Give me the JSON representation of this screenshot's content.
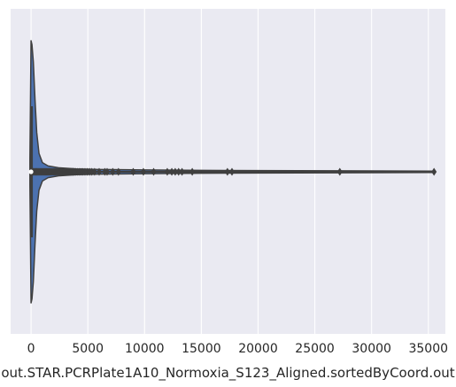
{
  "chart_data": {
    "type": "violin",
    "orientation": "horizontal",
    "title": "",
    "xlabel": "out.STAR.PCRPlate1A10_Normoxia_S123_Aligned.sortedByCoord.out",
    "ylabel": "",
    "xlim": [
      -1800,
      36500
    ],
    "xticks": [
      0,
      5000,
      10000,
      15000,
      20000,
      25000,
      30000,
      35000
    ],
    "xtick_labels": [
      "0",
      "5000",
      "10000",
      "15000",
      "20000",
      "25000",
      "30000",
      "35000"
    ],
    "grid": true,
    "background": "#eaeaf2",
    "fill_color": "#4c72b0",
    "line_color": "#3f3f3f",
    "summary": {
      "median": 0,
      "q1": 0,
      "q3": 30,
      "whisker_low": 0,
      "whisker_high": 80,
      "max": 35500
    },
    "density_profile": [
      {
        "x": -100,
        "half_width": 0.1
      },
      {
        "x": 0,
        "half_width": 1.0
      },
      {
        "x": 80,
        "half_width": 0.97
      },
      {
        "x": 200,
        "half_width": 0.84
      },
      {
        "x": 350,
        "half_width": 0.55
      },
      {
        "x": 500,
        "half_width": 0.3
      },
      {
        "x": 700,
        "half_width": 0.14
      },
      {
        "x": 1000,
        "half_width": 0.07
      },
      {
        "x": 1500,
        "half_width": 0.045
      },
      {
        "x": 2500,
        "half_width": 0.03
      },
      {
        "x": 4000,
        "half_width": 0.022
      },
      {
        "x": 6000,
        "half_width": 0.018
      },
      {
        "x": 10000,
        "half_width": 0.014
      },
      {
        "x": 15000,
        "half_width": 0.011
      },
      {
        "x": 20000,
        "half_width": 0.009
      },
      {
        "x": 30000,
        "half_width": 0.007
      },
      {
        "x": 35500,
        "half_width": 0.005
      }
    ],
    "outliers": [
      150,
      220,
      300,
      380,
      450,
      520,
      600,
      680,
      760,
      840,
      920,
      1000,
      1080,
      1160,
      1240,
      1320,
      1400,
      1480,
      1560,
      1640,
      1720,
      1800,
      1880,
      1960,
      2040,
      2120,
      2200,
      2280,
      2360,
      2440,
      2520,
      2600,
      2700,
      2800,
      2900,
      3000,
      3100,
      3200,
      3300,
      3400,
      3500,
      3600,
      3700,
      3800,
      3950,
      4100,
      4250,
      4400,
      4550,
      4750,
      4950,
      5150,
      5350,
      5600,
      6000,
      6500,
      6700,
      7200,
      7700,
      9000,
      9900,
      10800,
      12000,
      12400,
      12700,
      13000,
      13300,
      14200,
      17300,
      17700,
      27200,
      35500
    ]
  }
}
